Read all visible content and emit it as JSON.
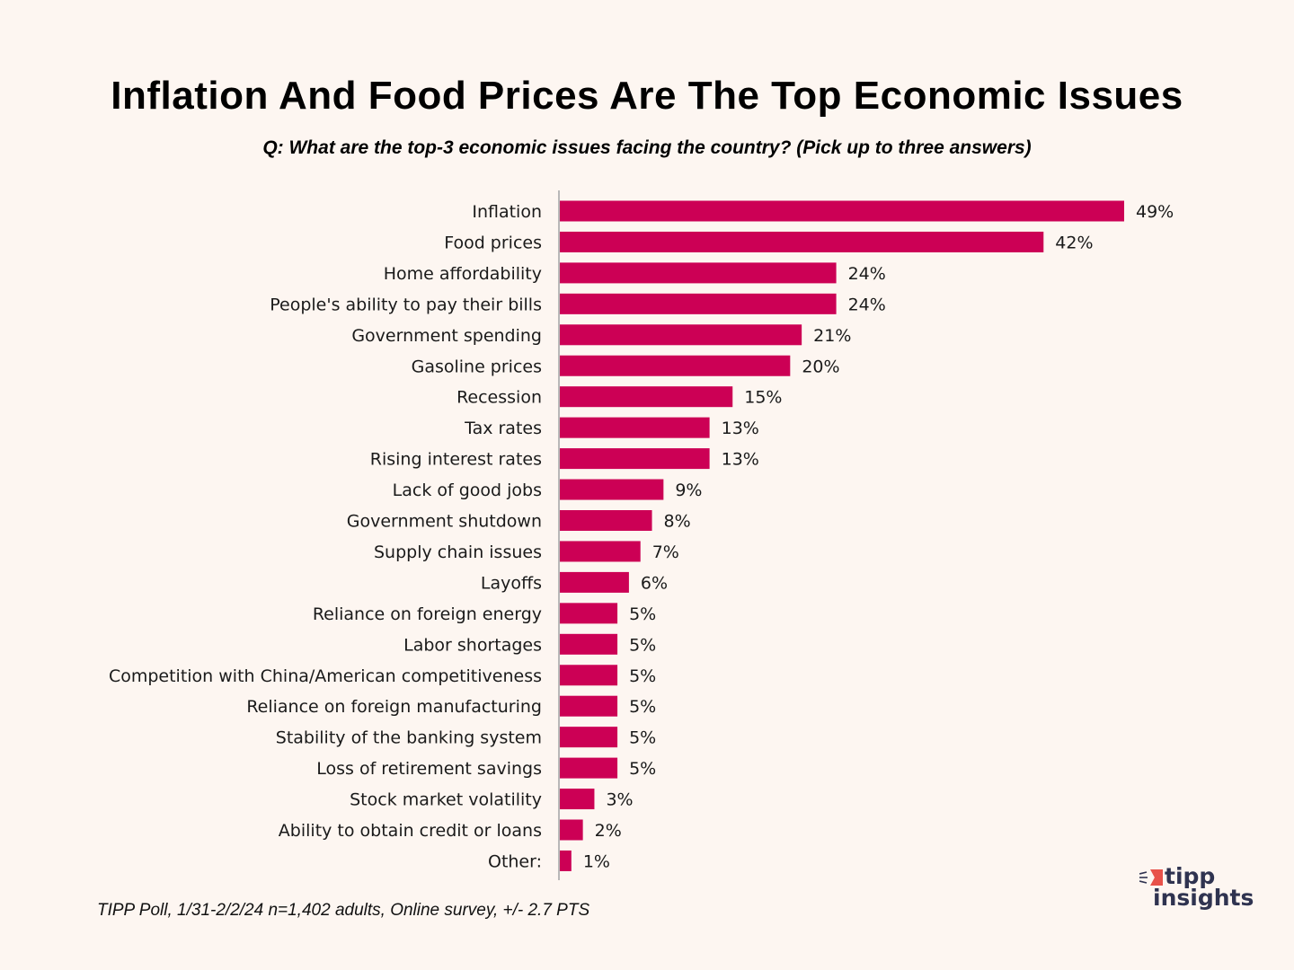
{
  "title": "Inflation And Food Prices Are The Top Economic Issues",
  "subtitle": "Q: What are the top-3 economic issues facing the country? (Pick up to three answers)",
  "footnote": "TIPP Poll, 1/31-2/2/24 n=1,402 adults, Online survey, +/- 2.7 PTS",
  "logo": {
    "line1": "tipp",
    "line2": "insights",
    "icon": "flag-icon"
  },
  "colors": {
    "bar": "#cc0055",
    "background": "#fdf6f1",
    "axis": "#b8b8b8",
    "logo_text": "#2f3350",
    "logo_accent": "#e8524a"
  },
  "chart_data": {
    "type": "bar",
    "orientation": "horizontal",
    "title": "Inflation And Food Prices Are The Top Economic Issues",
    "subtitle": "Q: What are the top-3 economic issues facing the country? (Pick up to three answers)",
    "xlabel": "",
    "ylabel": "",
    "value_suffix": "%",
    "xlim": [
      0,
      50
    ],
    "grid": false,
    "legend": "none",
    "categories": [
      "Inflation",
      "Food prices",
      "Home affordability",
      "People's ability to pay their bills",
      "Government spending",
      "Gasoline prices",
      "Recession",
      "Tax rates",
      "Rising interest rates",
      "Lack of good jobs",
      "Government shutdown",
      "Supply chain issues",
      "Layoffs",
      "Reliance on foreign energy",
      "Labor shortages",
      "Competition with China/American competitiveness",
      "Reliance on foreign manufacturing",
      "Stability of the banking system",
      "Loss of retirement savings",
      "Stock market volatility",
      "Ability to obtain credit or loans",
      "Other:"
    ],
    "values": [
      49,
      42,
      24,
      24,
      21,
      20,
      15,
      13,
      13,
      9,
      8,
      7,
      6,
      5,
      5,
      5,
      5,
      5,
      5,
      3,
      2,
      1
    ]
  }
}
